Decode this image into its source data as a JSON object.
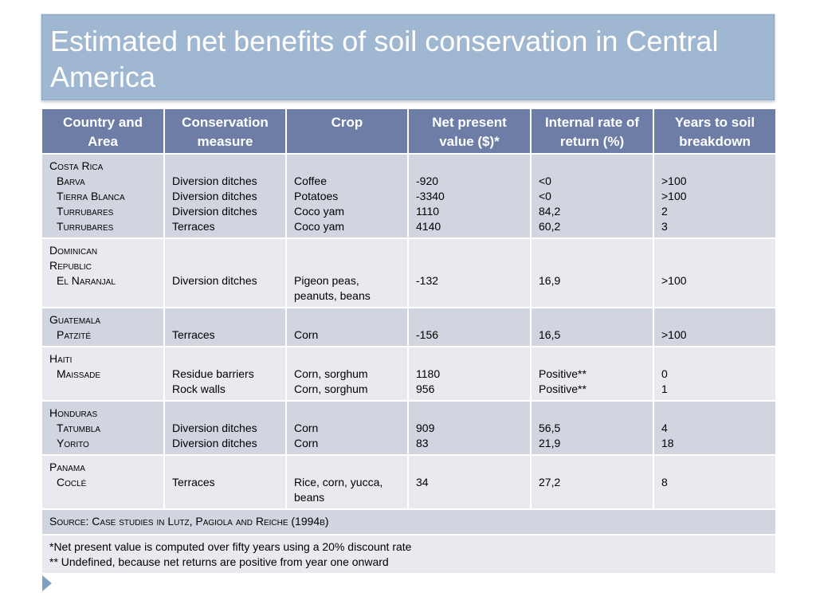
{
  "title": "Estimated net benefits of soil conservation in Central America",
  "headers": [
    "Country and Area",
    "Conservation measure",
    "Crop",
    "Net present value ($)*",
    "Internal rate of return (%)",
    "Years to soil breakdown"
  ],
  "rows": [
    {
      "country": "Costa Rica",
      "areas": [
        "Barva",
        "Tierra Blanca",
        "Turrubares",
        "Turrubares"
      ],
      "measures": [
        "Diversion ditches",
        "Diversion ditches",
        "Diversion ditches",
        "Terraces"
      ],
      "crops": [
        "Coffee",
        "Potatoes",
        "Coco yam",
        "Coco yam"
      ],
      "npv": [
        "-920",
        "-3340",
        "1110",
        "4140"
      ],
      "irr": [
        "<0",
        "<0",
        "84,2",
        "60,2"
      ],
      "years": [
        ">100",
        ">100",
        "2",
        "3"
      ]
    },
    {
      "country": "Dominican Republic",
      "country_lines": [
        "Dominican",
        "Republic"
      ],
      "areas": [
        "El Naranjal"
      ],
      "measures": [
        "Diversion ditches"
      ],
      "crops": [
        "Pigeon peas,",
        "peanuts, beans"
      ],
      "npv": [
        "-132"
      ],
      "irr": [
        "16,9"
      ],
      "years": [
        ">100"
      ]
    },
    {
      "country": "Guatemala",
      "areas": [
        "Patzité"
      ],
      "measures": [
        "Terraces"
      ],
      "crops": [
        "Corn"
      ],
      "npv": [
        "-156"
      ],
      "irr": [
        "16,5"
      ],
      "years": [
        ">100"
      ]
    },
    {
      "country": "Haiti",
      "areas": [
        "Maissade"
      ],
      "measures": [
        "Residue barriers",
        "Rock walls"
      ],
      "crops": [
        "Corn, sorghum",
        "Corn, sorghum"
      ],
      "npv": [
        "1180",
        "956"
      ],
      "irr": [
        "Positive**",
        "Positive**"
      ],
      "years": [
        "0",
        "1"
      ]
    },
    {
      "country": "Honduras",
      "areas": [
        "Tatumbla",
        "Yorito"
      ],
      "measures": [
        "Diversion ditches",
        "Diversion ditches"
      ],
      "crops": [
        "Corn",
        "Corn"
      ],
      "npv": [
        "909",
        "83"
      ],
      "irr": [
        "56,5",
        "21,9"
      ],
      "years": [
        "4",
        "18"
      ]
    },
    {
      "country": "Panama",
      "areas": [
        "Coclé"
      ],
      "measures": [
        "Terraces"
      ],
      "crops": [
        "Rice, corn, yucca,",
        "beans"
      ],
      "npv": [
        "34"
      ],
      "irr": [
        "27,2"
      ],
      "years": [
        "8"
      ]
    }
  ],
  "source": "Source: Case studies in Lutz, Pagiola and Reiche (1994b)",
  "notes": [
    "*Net present value is computed over fifty years using a 20% discount rate",
    "** Undefined, because net returns are positive from year one onward"
  ],
  "colors": {
    "title_bg": "#9fb7d0",
    "header_bg": "#6d7da6",
    "row_dark": "#d1d5df",
    "row_light": "#e9e9ef",
    "bullet": "#7f9fc3"
  },
  "icons": {
    "bullet": "chevron-right-icon"
  }
}
